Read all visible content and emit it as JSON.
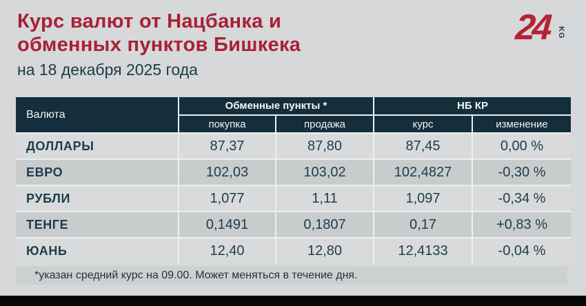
{
  "header": {
    "title_line1": "Курс валют от Нацбанка и",
    "title_line2": "обменных пунктов Бишкека",
    "date": "на 18 декабря 2025 года",
    "logo_number": "24",
    "logo_suffix": "KG"
  },
  "chart_data": {
    "type": "table",
    "title": "Курс валют от Нацбанка и обменных пунктов Бишкека",
    "subtitle": "на 18 декабря 2025 года",
    "column_groups": {
      "exchange_offices": "Обменные пункты *",
      "national_bank": "НБ КР"
    },
    "columns": {
      "currency": "Валюта",
      "buy": "покупка",
      "sell": "продажа",
      "rate": "курс",
      "change": "изменение"
    },
    "rows": [
      {
        "currency": "ДОЛЛАРЫ",
        "buy": "87,37",
        "sell": "87,80",
        "rate": "87,45",
        "change": "0,00 %"
      },
      {
        "currency": "ЕВРО",
        "buy": "102,03",
        "sell": "103,02",
        "rate": "102,4827",
        "change": "-0,30 %"
      },
      {
        "currency": "РУБЛИ",
        "buy": "1,077",
        "sell": "1,11",
        "rate": "1,097",
        "change": "-0,34 %"
      },
      {
        "currency": "ТЕНГЕ",
        "buy": "0,1491",
        "sell": "0,1807",
        "rate": "0,17",
        "change": "+0,83 %"
      },
      {
        "currency": "ЮАНЬ",
        "buy": "12,40",
        "sell": "12,80",
        "rate": "12,4133",
        "change": "-0,04 %"
      }
    ],
    "footnote": "*указан средний курс на 09.00. Может меняться в течение дня."
  },
  "colors": {
    "accent_red": "#a92037",
    "logo_red": "#b72134",
    "header_navy": "#142e3b",
    "text_navy": "#1e3c4c",
    "background": "#d6d8d9",
    "row_light": "#d8dadb",
    "row_dark": "#c9cccd",
    "footnote_bar": "#cdd0d1",
    "bottom_bar": "#060606"
  }
}
